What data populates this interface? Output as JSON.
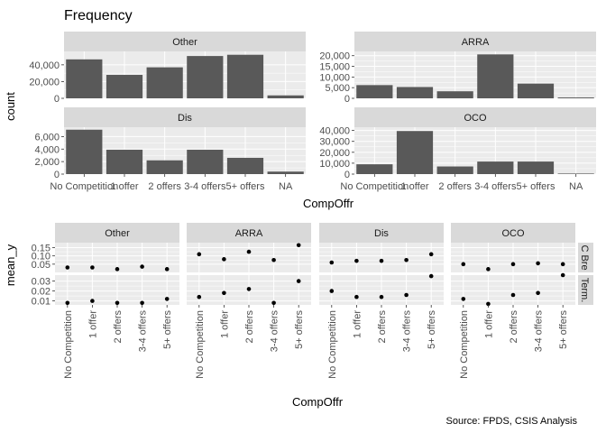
{
  "title": "Frequency",
  "caption": "Source: FPDS, CSIS Analysis",
  "colors": {
    "panel_bg": "#EBEBEB",
    "strip_bg": "#D9D9D9",
    "bar": "#595959",
    "grid": "#FFFFFF",
    "point": "#000000"
  },
  "chart_data": [
    {
      "type": "bar",
      "title": "Frequency",
      "xlabel": "CompOffr",
      "ylabel": "count",
      "categories": [
        "No Competition",
        "1 offer",
        "2 offers",
        "3-4 offers",
        "5+ offers",
        "NA"
      ],
      "facets": [
        {
          "name": "Other",
          "values": [
            46500,
            28000,
            37000,
            50500,
            52000,
            3500
          ],
          "ylim": [
            0,
            56000
          ],
          "yticks": [
            0,
            20000,
            40000
          ],
          "ytick_labels": [
            "0",
            "20,000",
            "40,000"
          ]
        },
        {
          "name": "ARRA",
          "values": [
            6200,
            5300,
            3300,
            20600,
            6900,
            400
          ],
          "ylim": [
            0,
            22000
          ],
          "yticks": [
            0,
            5000,
            10000,
            15000,
            20000
          ],
          "ytick_labels": [
            "0",
            "5,000",
            "10,000",
            "15,000",
            "20,000"
          ]
        },
        {
          "name": "Dis",
          "values": [
            7100,
            3900,
            2200,
            3900,
            2600,
            400
          ],
          "ylim": [
            0,
            7500
          ],
          "yticks": [
            0,
            2000,
            4000,
            6000
          ],
          "ytick_labels": [
            "0",
            "2,000",
            "4,000",
            "6,000"
          ]
        },
        {
          "name": "OCO",
          "values": [
            9000,
            39500,
            7000,
            11500,
            11500,
            500
          ],
          "ylim": [
            0,
            43000
          ],
          "yticks": [
            0,
            10000,
            20000,
            30000,
            40000
          ],
          "ytick_labels": [
            "0",
            "10,000",
            "20,000",
            "30,000",
            "40,000"
          ]
        }
      ]
    },
    {
      "type": "scatter",
      "xlabel": "CompOffr",
      "ylabel": "mean_y",
      "categories": [
        "No Competition",
        "1 offer",
        "2 offers",
        "3-4 offers",
        "5+ offers"
      ],
      "columns": [
        "Other",
        "ARRA",
        "Dis",
        "OCO"
      ],
      "rows": [
        {
          "name": "C Bre",
          "ylim": [
            0,
            0.18
          ],
          "yticks": [
            0.05,
            0.1,
            0.15
          ],
          "ytick_labels": [
            "0.05",
            "0.10",
            "0.15"
          ],
          "values": {
            "Other": [
              0.03,
              0.03,
              0.02,
              0.035,
              0.02
            ],
            "ARRA": [
              0.11,
              0.08,
              0.125,
              0.075,
              0.165
            ],
            "Dis": [
              0.06,
              0.07,
              0.07,
              0.075,
              0.11
            ],
            "OCO": [
              0.05,
              0.02,
              0.05,
              0.055,
              0.05
            ]
          }
        },
        {
          "name": "Term.",
          "ylim": [
            0.006,
            0.036
          ],
          "yticks": [
            0.01,
            0.02,
            0.03
          ],
          "ytick_labels": [
            "0.01",
            "0.02",
            "0.03"
          ],
          "values": {
            "Other": [
              0.008,
              0.01,
              0.008,
              0.008,
              0.012
            ],
            "ARRA": [
              0.014,
              0.018,
              0.022,
              0.008,
              0.03
            ],
            "Dis": [
              0.02,
              0.014,
              0.014,
              0.016,
              0.035
            ],
            "OCO": [
              0.012,
              0.007,
              0.016,
              0.018,
              0.036
            ]
          }
        }
      ]
    }
  ]
}
